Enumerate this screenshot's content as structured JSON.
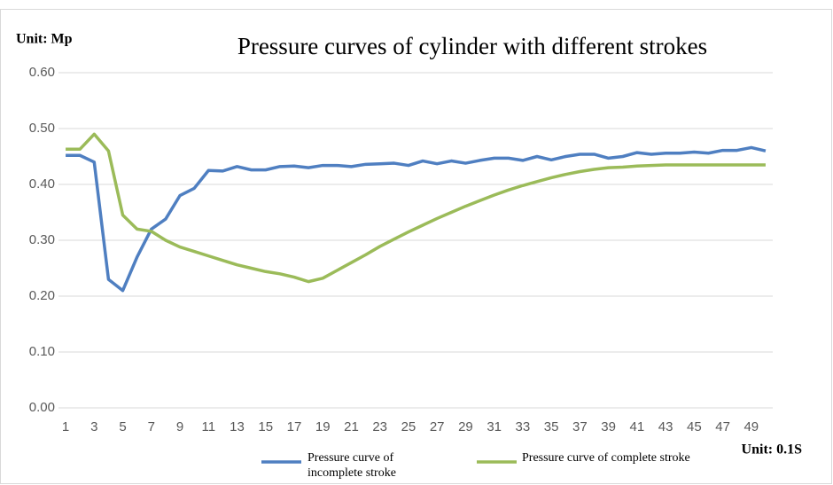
{
  "chart_data": {
    "type": "line",
    "title": "Pressure curves of cylinder with different strokes",
    "y_label": "Unit: Mp",
    "x_label": "Unit: 0.1S",
    "categories": [
      1,
      null,
      3,
      null,
      5,
      null,
      7,
      null,
      9,
      null,
      11,
      null,
      13,
      null,
      15,
      null,
      17,
      null,
      19,
      null,
      21,
      null,
      23,
      null,
      25,
      null,
      27,
      null,
      29,
      null,
      31,
      null,
      33,
      null,
      35,
      null,
      37,
      null,
      39,
      null,
      41,
      null,
      43,
      null,
      45,
      null,
      47,
      null,
      49,
      null
    ],
    "series": [
      {
        "name": "Pressure curve of incomplete stroke",
        "color": "#4f7fc1",
        "values": [
          0.452,
          0.452,
          0.44,
          0.23,
          0.21,
          0.27,
          0.32,
          0.338,
          0.38,
          0.393,
          0.425,
          0.424,
          0.432,
          0.426,
          0.426,
          0.432,
          0.433,
          0.43,
          0.434,
          0.434,
          0.432,
          0.436,
          0.437,
          0.438,
          0.434,
          0.442,
          0.437,
          0.442,
          0.438,
          0.443,
          0.447,
          0.447,
          0.443,
          0.45,
          0.444,
          0.45,
          0.454,
          0.454,
          0.447,
          0.45,
          0.457,
          0.454,
          0.456,
          0.456,
          0.458,
          0.456,
          0.461,
          0.461,
          0.466,
          0.46
        ]
      },
      {
        "name": "Pressure curve of complete stroke",
        "color": "#9bbb59",
        "values": [
          0.463,
          0.463,
          0.49,
          0.46,
          0.345,
          0.32,
          0.316,
          0.3,
          0.288,
          0.28,
          0.272,
          0.264,
          0.256,
          0.25,
          0.244,
          0.24,
          0.234,
          0.226,
          0.232,
          0.246,
          0.26,
          0.274,
          0.289,
          0.302,
          0.315,
          0.327,
          0.339,
          0.35,
          0.361,
          0.371,
          0.381,
          0.39,
          0.398,
          0.405,
          0.412,
          0.418,
          0.423,
          0.427,
          0.43,
          0.431,
          0.433,
          0.434,
          0.435,
          0.435,
          0.435,
          0.435,
          0.435,
          0.435,
          0.435,
          0.435
        ]
      }
    ],
    "ylim": [
      0,
      0.6
    ],
    "yticks": [
      {
        "value": 0,
        "label": "0.00"
      },
      {
        "value": 0.1,
        "label": "0.10"
      },
      {
        "value": 0.2,
        "label": "0.20"
      },
      {
        "value": 0.3,
        "label": "0.30"
      },
      {
        "value": 0.4,
        "label": "0.40"
      },
      {
        "value": 0.5,
        "label": "0.50"
      },
      {
        "value": 0.6,
        "label": "0.60"
      }
    ],
    "grid": true
  }
}
